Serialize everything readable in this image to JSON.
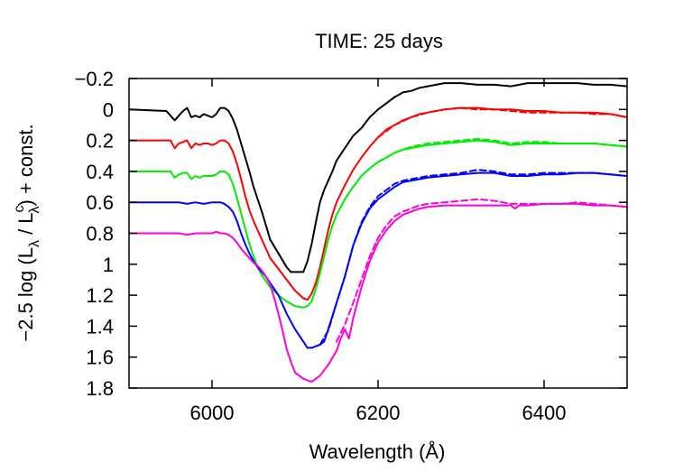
{
  "chart_data": {
    "type": "line",
    "title": "TIME: 25 days",
    "xlabel": "Wavelength (Å)",
    "ylabel": "−2.5 log (Lλ / Lcλ) + const.",
    "ylabel_parts": {
      "prefix": "−2.5 log (L",
      "sub1": "λ",
      "mid": " / L",
      "sup2": "c",
      "sub2": "λ",
      "suffix": ") + const."
    },
    "xlim": [
      5900,
      6500
    ],
    "ylim": [
      -0.2,
      1.8
    ],
    "y_inverted": true,
    "grid": false,
    "x_ticks": [
      6000,
      6200,
      6400
    ],
    "x_tick_labels": [
      "6000",
      "6200",
      "6400"
    ],
    "y_ticks": [
      -0.2,
      0,
      0.2,
      0.4,
      0.6,
      0.8,
      1,
      1.2,
      1.4,
      1.6,
      1.8
    ],
    "y_tick_labels": [
      "−0.2",
      "0",
      "0.2",
      "0.4",
      "0.6",
      "0.8",
      "1",
      "1.2",
      "1.4",
      "1.6",
      "1.8"
    ],
    "series": [
      {
        "color": "#000000",
        "dash": false,
        "x": [
          5900,
          5945,
          5955,
          5960,
          5965,
          5970,
          5975,
          5980,
          5985,
          5990,
          5995,
          6000,
          6005,
          6010,
          6015,
          6020,
          6025,
          6030,
          6035,
          6040,
          6045,
          6050,
          6055,
          6060,
          6065,
          6070,
          6080,
          6090,
          6095,
          6100,
          6110,
          6115,
          6120,
          6125,
          6130,
          6135,
          6140,
          6145,
          6150,
          6160,
          6170,
          6180,
          6190,
          6200,
          6210,
          6220,
          6230,
          6240,
          6250,
          6260,
          6280,
          6300,
          6320,
          6340,
          6360,
          6380,
          6400,
          6420,
          6440,
          6460,
          6480,
          6500
        ],
        "y": [
          0,
          0.01,
          0.07,
          0.04,
          0.01,
          -0.01,
          0.05,
          0.04,
          0.05,
          0.03,
          0.04,
          0.05,
          0.03,
          -0.01,
          -0.01,
          0.01,
          0.06,
          0.13,
          0.22,
          0.31,
          0.4,
          0.5,
          0.58,
          0.66,
          0.75,
          0.84,
          0.93,
          1.02,
          1.05,
          1.05,
          1.05,
          0.98,
          0.87,
          0.73,
          0.6,
          0.52,
          0.46,
          0.4,
          0.33,
          0.25,
          0.17,
          0.12,
          0.05,
          0.0,
          -0.04,
          -0.08,
          -0.11,
          -0.12,
          -0.14,
          -0.15,
          -0.17,
          -0.17,
          -0.16,
          -0.16,
          -0.15,
          -0.17,
          -0.17,
          -0.17,
          -0.17,
          -0.16,
          -0.16,
          -0.15
        ]
      },
      {
        "color": "#ff0000",
        "dash": false,
        "x": [
          5900,
          5950,
          5955,
          5960,
          5965,
          5970,
          5975,
          5980,
          5985,
          5990,
          5995,
          6000,
          6005,
          6010,
          6015,
          6020,
          6025,
          6030,
          6035,
          6040,
          6045,
          6050,
          6055,
          6060,
          6065,
          6070,
          6080,
          6090,
          6100,
          6110,
          6115,
          6120,
          6125,
          6130,
          6135,
          6140,
          6145,
          6150,
          6160,
          6170,
          6180,
          6190,
          6200,
          6210,
          6220,
          6230,
          6240,
          6250,
          6260,
          6280,
          6300,
          6320,
          6340,
          6360,
          6380,
          6400,
          6420,
          6440,
          6460,
          6480,
          6500
        ],
        "y": [
          0.2,
          0.2,
          0.25,
          0.22,
          0.21,
          0.2,
          0.25,
          0.22,
          0.23,
          0.22,
          0.22,
          0.23,
          0.22,
          0.2,
          0.2,
          0.22,
          0.27,
          0.35,
          0.45,
          0.56,
          0.65,
          0.72,
          0.78,
          0.84,
          0.9,
          0.96,
          1.03,
          1.1,
          1.17,
          1.22,
          1.23,
          1.19,
          1.12,
          1.02,
          0.9,
          0.78,
          0.68,
          0.6,
          0.49,
          0.39,
          0.31,
          0.24,
          0.18,
          0.13,
          0.1,
          0.07,
          0.05,
          0.03,
          0.02,
          0.0,
          -0.01,
          -0.01,
          0.0,
          0.0,
          0.01,
          0.01,
          0.02,
          0.02,
          0.02,
          0.03,
          0.05
        ]
      },
      {
        "color": "#ff0000",
        "dash": true,
        "x": [
          6200,
          6220,
          6240,
          6260,
          6280,
          6300,
          6320,
          6340,
          6360,
          6380,
          6400,
          6420,
          6440,
          6460,
          6480,
          6500
        ],
        "y": [
          0.18,
          0.1,
          0.05,
          0.02,
          0.0,
          -0.01,
          0.0,
          0.0,
          0.01,
          0.02,
          0.02,
          0.02,
          0.02,
          0.03,
          0.03,
          0.05
        ]
      },
      {
        "color": "#00ee00",
        "dash": false,
        "x": [
          5900,
          5950,
          5955,
          5960,
          5965,
          5970,
          5975,
          5980,
          5985,
          5990,
          5995,
          6000,
          6005,
          6010,
          6015,
          6020,
          6025,
          6030,
          6035,
          6040,
          6045,
          6050,
          6055,
          6060,
          6065,
          6070,
          6080,
          6090,
          6100,
          6110,
          6115,
          6120,
          6125,
          6130,
          6135,
          6140,
          6145,
          6150,
          6160,
          6170,
          6180,
          6190,
          6200,
          6210,
          6220,
          6230,
          6240,
          6250,
          6260,
          6280,
          6300,
          6320,
          6340,
          6360,
          6380,
          6400,
          6420,
          6440,
          6460,
          6480,
          6500
        ],
        "y": [
          0.4,
          0.4,
          0.44,
          0.42,
          0.41,
          0.41,
          0.45,
          0.43,
          0.44,
          0.43,
          0.43,
          0.43,
          0.42,
          0.4,
          0.4,
          0.42,
          0.48,
          0.57,
          0.67,
          0.77,
          0.87,
          0.95,
          1.02,
          1.07,
          1.11,
          1.15,
          1.2,
          1.24,
          1.27,
          1.28,
          1.27,
          1.24,
          1.16,
          1.06,
          0.95,
          0.84,
          0.75,
          0.68,
          0.58,
          0.5,
          0.43,
          0.38,
          0.34,
          0.31,
          0.28,
          0.26,
          0.25,
          0.24,
          0.23,
          0.22,
          0.21,
          0.2,
          0.21,
          0.23,
          0.22,
          0.22,
          0.22,
          0.22,
          0.22,
          0.23,
          0.24
        ]
      },
      {
        "color": "#00ee00",
        "dash": true,
        "x": [
          6200,
          6220,
          6240,
          6260,
          6280,
          6300,
          6320,
          6340,
          6360,
          6380,
          6400,
          6420,
          6440,
          6460,
          6480,
          6500
        ],
        "y": [
          0.34,
          0.28,
          0.24,
          0.22,
          0.21,
          0.2,
          0.19,
          0.2,
          0.22,
          0.21,
          0.21,
          0.22,
          0.22,
          0.22,
          0.23,
          0.24
        ]
      },
      {
        "color": "#0000ff",
        "dash": false,
        "x": [
          5900,
          5950,
          5960,
          5970,
          5980,
          5990,
          6000,
          6005,
          6010,
          6015,
          6020,
          6025,
          6030,
          6035,
          6040,
          6045,
          6050,
          6055,
          6060,
          6065,
          6070,
          6080,
          6090,
          6100,
          6110,
          6115,
          6120,
          6125,
          6130,
          6135,
          6140,
          6150,
          6160,
          6170,
          6180,
          6190,
          6200,
          6210,
          6220,
          6230,
          6240,
          6250,
          6260,
          6280,
          6300,
          6320,
          6340,
          6360,
          6380,
          6400,
          6420,
          6440,
          6460,
          6480,
          6500
        ],
        "y": [
          0.6,
          0.6,
          0.6,
          0.61,
          0.6,
          0.61,
          0.6,
          0.6,
          0.6,
          0.61,
          0.63,
          0.66,
          0.72,
          0.8,
          0.87,
          0.93,
          0.98,
          1.02,
          1.05,
          1.08,
          1.12,
          1.2,
          1.32,
          1.42,
          1.5,
          1.54,
          1.54,
          1.53,
          1.52,
          1.5,
          1.42,
          1.25,
          1.08,
          0.88,
          0.74,
          0.64,
          0.58,
          0.54,
          0.5,
          0.47,
          0.46,
          0.45,
          0.44,
          0.43,
          0.42,
          0.41,
          0.41,
          0.43,
          0.43,
          0.42,
          0.42,
          0.41,
          0.41,
          0.42,
          0.43
        ]
      },
      {
        "color": "#0000ff",
        "dash": true,
        "x": [
          6130,
          6140,
          6150,
          6160,
          6170,
          6180,
          6190,
          6200,
          6210,
          6220,
          6230,
          6240,
          6250,
          6260,
          6280,
          6300,
          6320,
          6340,
          6360,
          6380,
          6400,
          6420,
          6440,
          6460,
          6480,
          6500
        ],
        "y": [
          1.52,
          1.43,
          1.25,
          1.08,
          0.88,
          0.73,
          0.63,
          0.56,
          0.52,
          0.48,
          0.46,
          0.45,
          0.44,
          0.43,
          0.42,
          0.41,
          0.39,
          0.4,
          0.42,
          0.42,
          0.41,
          0.41,
          0.41,
          0.41,
          0.42,
          0.43
        ]
      },
      {
        "color": "#ff00dd",
        "dash": false,
        "x": [
          5900,
          5950,
          5960,
          5970,
          5980,
          5990,
          6000,
          6005,
          6010,
          6015,
          6020,
          6025,
          6030,
          6035,
          6040,
          6045,
          6050,
          6055,
          6060,
          6065,
          6070,
          6075,
          6080,
          6085,
          6090,
          6095,
          6100,
          6110,
          6120,
          6130,
          6140,
          6150,
          6155,
          6160,
          6165,
          6170,
          6180,
          6190,
          6200,
          6210,
          6220,
          6230,
          6240,
          6250,
          6260,
          6280,
          6300,
          6320,
          6340,
          6360,
          6365,
          6370,
          6380,
          6400,
          6420,
          6440,
          6460,
          6480,
          6500
        ],
        "y": [
          0.8,
          0.8,
          0.8,
          0.81,
          0.8,
          0.8,
          0.8,
          0.79,
          0.8,
          0.8,
          0.81,
          0.83,
          0.86,
          0.9,
          0.93,
          0.96,
          0.99,
          1.01,
          1.04,
          1.08,
          1.13,
          1.22,
          1.32,
          1.43,
          1.55,
          1.63,
          1.7,
          1.74,
          1.76,
          1.72,
          1.65,
          1.56,
          1.48,
          1.42,
          1.48,
          1.35,
          1.15,
          0.98,
          0.86,
          0.78,
          0.72,
          0.68,
          0.66,
          0.64,
          0.63,
          0.62,
          0.62,
          0.62,
          0.62,
          0.62,
          0.64,
          0.62,
          0.62,
          0.61,
          0.61,
          0.61,
          0.62,
          0.62,
          0.63
        ]
      },
      {
        "color": "#ff00dd",
        "dash": true,
        "x": [
          6150,
          6160,
          6170,
          6180,
          6190,
          6200,
          6210,
          6220,
          6230,
          6240,
          6250,
          6260,
          6280,
          6300,
          6320,
          6340,
          6360,
          6380,
          6400,
          6420,
          6440,
          6460,
          6480,
          6500
        ],
        "y": [
          1.5,
          1.39,
          1.25,
          1.1,
          0.95,
          0.83,
          0.75,
          0.69,
          0.66,
          0.64,
          0.62,
          0.61,
          0.6,
          0.59,
          0.58,
          0.59,
          0.61,
          0.61,
          0.61,
          0.61,
          0.6,
          0.61,
          0.62,
          0.63
        ]
      }
    ]
  }
}
